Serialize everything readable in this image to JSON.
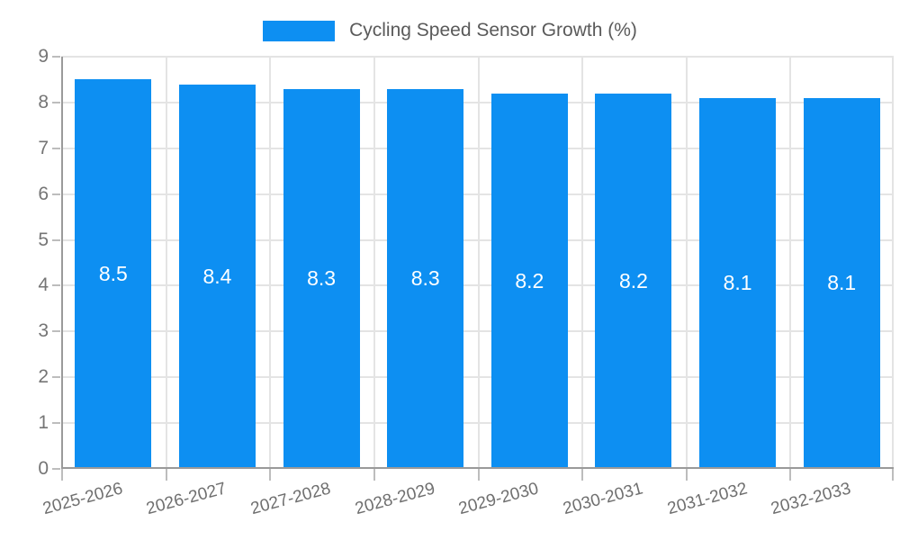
{
  "chart_data": {
    "type": "bar",
    "title": "Cycling Speed Sensor Growth (%)",
    "legend": {
      "position": "top",
      "label": "Cycling Speed Sensor Growth (%)"
    },
    "categories": [
      "2025-2026",
      "2026-2027",
      "2027-2028",
      "2028-2029",
      "2029-2030",
      "2030-2031",
      "2031-2032",
      "2032-2033"
    ],
    "values": [
      8.5,
      8.4,
      8.3,
      8.3,
      8.2,
      8.2,
      8.1,
      8.1
    ],
    "value_label_decimals": 1,
    "xlabel": "",
    "ylabel": "",
    "ylim": [
      0,
      9
    ],
    "ytick_step": 1,
    "grid": true,
    "colors": {
      "bar": "#0d8ff2",
      "value_label": "#ffffff",
      "gridline": "#e4e4e4",
      "axis_line": "#9a9a9a",
      "tick": "#bdbdbd",
      "y_label_text": "#757575",
      "x_label_text": "#6f6f6f",
      "legend_text": "#5a5a5a"
    }
  }
}
